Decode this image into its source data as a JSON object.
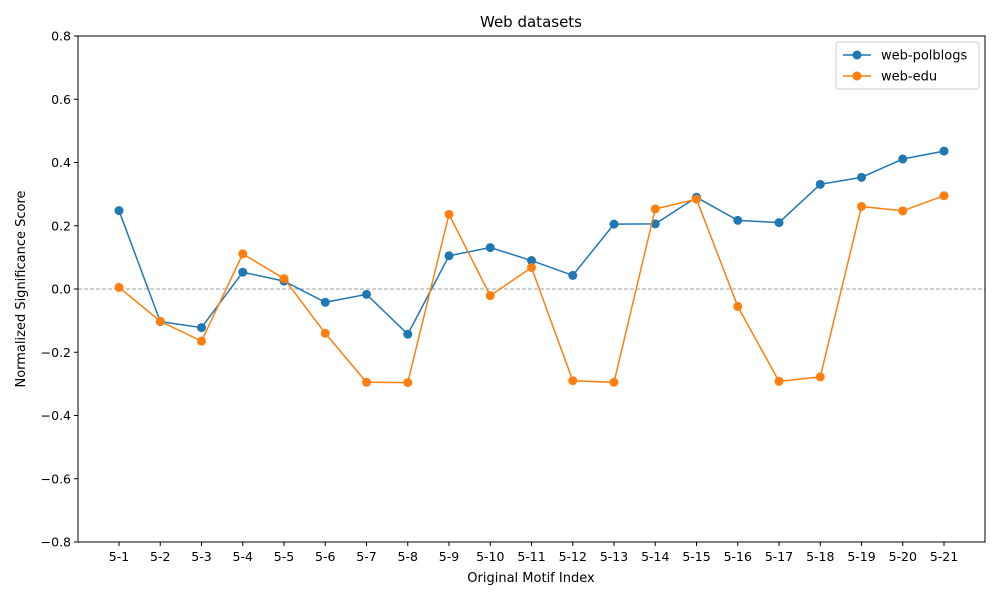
{
  "chart_data": {
    "type": "line",
    "title": "Web datasets",
    "xlabel": "Original Motif Index",
    "ylabel": "Normalized Significance Score",
    "ylim": [
      -0.8,
      0.8
    ],
    "yticks": [
      -0.8,
      -0.6,
      -0.4,
      -0.2,
      0.0,
      0.2,
      0.4,
      0.6,
      0.8
    ],
    "ytick_labels": [
      "−0.8",
      "−0.6",
      "−0.4",
      "−0.2",
      "0.0",
      "0.2",
      "0.4",
      "0.6",
      "0.8"
    ],
    "categories": [
      "5-1",
      "5-2",
      "5-3",
      "5-4",
      "5-5",
      "5-6",
      "5-7",
      "5-8",
      "5-9",
      "5-10",
      "5-11",
      "5-12",
      "5-13",
      "5-14",
      "5-15",
      "5-16",
      "5-17",
      "5-18",
      "5-19",
      "5-20",
      "5-21"
    ],
    "reference_line": 0.0,
    "grid": false,
    "legend_position": "top-right",
    "series": [
      {
        "name": "web-polblogs",
        "color": "#1f77b4",
        "values": [
          0.248,
          -0.103,
          -0.122,
          0.053,
          0.025,
          -0.042,
          -0.017,
          -0.143,
          0.105,
          0.131,
          0.09,
          0.043,
          0.205,
          0.206,
          0.29,
          0.217,
          0.21,
          0.331,
          0.353,
          0.411,
          0.436
        ]
      },
      {
        "name": "web-edu",
        "color": "#ff7f0e",
        "values": [
          0.005,
          -0.102,
          -0.165,
          0.111,
          0.033,
          -0.14,
          -0.295,
          -0.296,
          0.236,
          -0.021,
          0.068,
          -0.29,
          -0.295,
          0.253,
          0.284,
          -0.055,
          -0.292,
          -0.278,
          0.261,
          0.247,
          0.295
        ]
      }
    ]
  }
}
